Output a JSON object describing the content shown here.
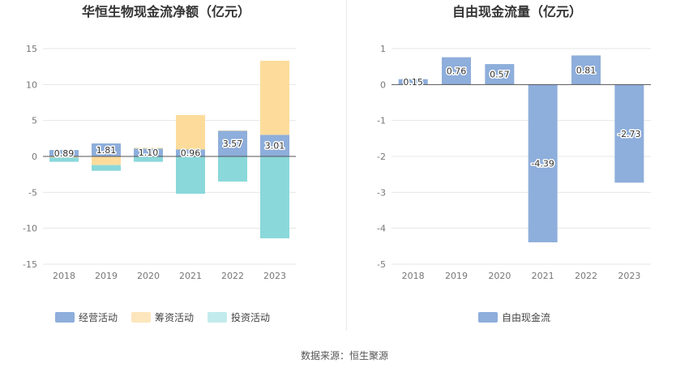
{
  "chart_data": [
    {
      "type": "bar",
      "stacked": true,
      "title": "华恒生物现金流净额（亿元）",
      "categories": [
        "2018",
        "2019",
        "2020",
        "2021",
        "2022",
        "2023"
      ],
      "ylim": [
        -15,
        15
      ],
      "yticks": [
        15,
        10,
        5,
        0,
        -5,
        -10,
        -15
      ],
      "grid": true,
      "legend_position": "bottom",
      "series": [
        {
          "name": "经营活动",
          "color": "#8eaedb",
          "values": [
            0.89,
            1.81,
            1.1,
            0.96,
            3.57,
            3.01
          ],
          "labels": [
            "0.89",
            "1.81",
            "1.10",
            "0.96",
            "3.57",
            "3.01"
          ]
        },
        {
          "name": "筹资活动",
          "color": "#fddc9b",
          "values": [
            -0.15,
            -1.2,
            0.1,
            4.8,
            0.05,
            10.3
          ]
        },
        {
          "name": "投资活动",
          "color": "#8ad8da",
          "values": [
            -0.6,
            -0.8,
            -0.75,
            -5.2,
            -3.5,
            -11.4
          ]
        }
      ],
      "legend_swatch_colors": [
        "#8eaedb",
        "#fde6bd",
        "#c2ebec"
      ]
    },
    {
      "type": "bar",
      "title": "自由现金流量（亿元）",
      "categories": [
        "2018",
        "2019",
        "2020",
        "2021",
        "2022",
        "2023"
      ],
      "ylim": [
        -5,
        1
      ],
      "yticks": [
        1,
        0,
        -1,
        -2,
        -3,
        -4,
        -5
      ],
      "grid": true,
      "legend_position": "bottom",
      "series": [
        {
          "name": "自由现金流",
          "color": "#8eaedb",
          "values": [
            0.15,
            0.76,
            0.57,
            -4.39,
            0.81,
            -2.73
          ],
          "labels": [
            "0.15",
            "0.76",
            "0.57",
            "-4.39",
            "0.81",
            "-2.73"
          ]
        }
      ]
    }
  ],
  "footer": "数据来源：恒生聚源"
}
